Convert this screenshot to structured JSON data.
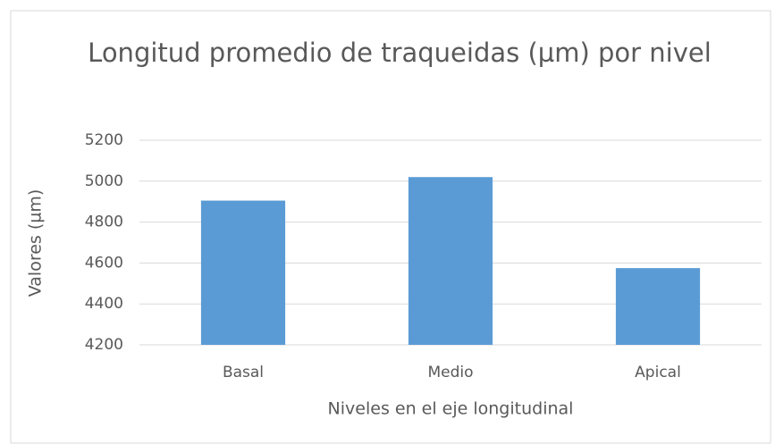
{
  "chart_data": {
    "type": "bar",
    "title": "Longitud promedio de traqueidas (µm) por nivel",
    "categories": [
      "Basal",
      "Medio",
      "Apical"
    ],
    "values": [
      4905,
      5020,
      4575
    ],
    "color": "#5b9bd5",
    "ylim": [
      4200,
      5200
    ],
    "yticks": [
      4200,
      4400,
      4600,
      4800,
      5000,
      5200
    ],
    "grid": true,
    "xlabel": "Niveles en el eje longitudinal",
    "ylabel": "Valores (µm)"
  }
}
